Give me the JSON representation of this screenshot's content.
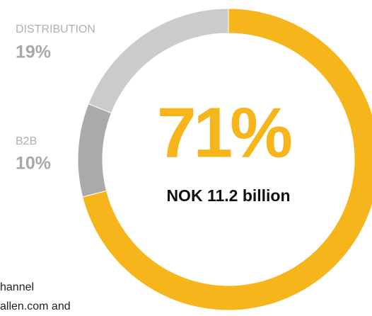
{
  "chart_data": {
    "type": "donut",
    "categories": [
      null,
      "B2B",
      "DISTRIBUTION"
    ],
    "values": [
      71,
      10,
      19
    ],
    "value_labels": [
      "71%",
      "10%",
      "19%"
    ],
    "colors": [
      "#f5b51b",
      "#aaaaaa",
      "#cbcbcb"
    ],
    "center_annotation": "NOK 11.2 billion",
    "notes": [
      "hannel",
      "allen.com and"
    ]
  }
}
